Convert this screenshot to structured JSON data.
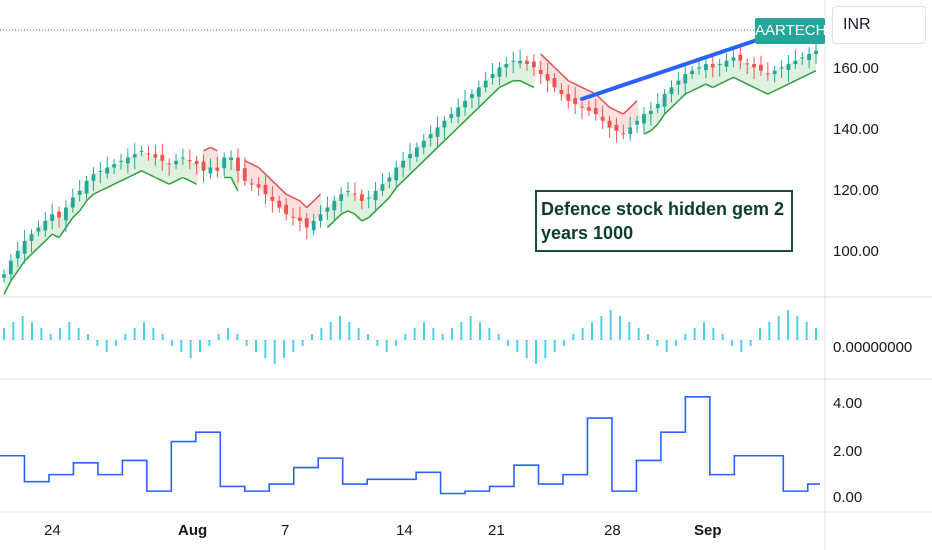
{
  "ticker": "AARTECH",
  "currency": "INR",
  "annotation": "Defence stock hidden gem 2 years 1000",
  "colors": {
    "up": "#26a69a",
    "down": "#ef5350",
    "supertrend_up": "#2e9e3e",
    "supertrend_down": "#e05050",
    "trendline": "#2962ff",
    "histogram": "#4dd0e1",
    "indicator_line": "#2962ff"
  },
  "chart_data": [
    {
      "type": "candlestick",
      "panel": "price",
      "y_ticks": [
        "160.00",
        "140.00",
        "120.00",
        "100.00"
      ],
      "ylim": [
        88,
        168
      ],
      "x_ticks": [
        "24",
        "Aug",
        "7",
        "14",
        "21",
        "28",
        "Sep"
      ],
      "close_series": [
        96,
        100,
        103,
        106,
        108,
        110,
        112,
        114,
        113,
        116,
        119,
        121,
        124,
        126,
        127,
        128,
        129,
        130,
        131,
        132,
        133,
        132,
        131,
        130,
        129,
        130,
        131,
        130,
        129,
        127,
        128,
        127,
        131,
        131,
        127,
        124,
        123,
        122,
        120,
        118,
        116,
        114,
        113,
        112,
        110,
        112,
        114,
        116,
        118,
        120,
        121,
        120,
        118,
        119,
        121,
        123,
        125,
        128,
        130,
        132,
        134,
        136,
        138,
        140,
        142,
        144,
        146,
        148,
        150,
        152,
        154,
        156,
        158,
        159,
        160,
        160,
        159,
        158,
        156,
        154,
        152,
        150,
        148,
        147,
        146,
        145,
        144,
        142,
        140,
        139,
        138,
        140,
        142,
        144,
        145,
        147,
        150,
        152,
        154,
        156,
        157,
        158,
        159,
        158,
        159,
        160,
        161,
        160,
        159,
        158,
        157,
        156,
        157,
        158,
        159,
        160,
        161,
        162,
        163
      ]
    },
    {
      "type": "bar",
      "panel": "oscillator",
      "y_ticks": [
        "0.00000000"
      ],
      "values": [
        2,
        3,
        4,
        3,
        2,
        1,
        2,
        3,
        2,
        1,
        -1,
        -2,
        -1,
        1,
        2,
        3,
        2,
        1,
        -1,
        -2,
        -3,
        -2,
        -1,
        1,
        2,
        1,
        -1,
        -2,
        -3,
        -4,
        -3,
        -2,
        -1,
        1,
        2,
        3,
        4,
        3,
        2,
        1,
        -1,
        -2,
        -1,
        1,
        2,
        3,
        2,
        1,
        2,
        3,
        4,
        3,
        2,
        1,
        -1,
        -2,
        -3,
        -4,
        -3,
        -2,
        -1,
        1,
        2,
        3,
        4,
        5,
        4,
        3,
        2,
        1,
        -1,
        -2,
        -1,
        1,
        2,
        3,
        2,
        1,
        -1,
        -2,
        -1,
        2,
        3,
        4,
        5,
        4,
        3,
        2
      ]
    },
    {
      "type": "line",
      "panel": "indicator",
      "y_ticks": [
        "4.00",
        "2.00",
        "0.00"
      ],
      "ylim": [
        -0.5,
        4.8
      ],
      "values": [
        1.8,
        1.8,
        0.7,
        0.7,
        1.0,
        1.0,
        1.5,
        1.5,
        1.0,
        1.0,
        1.6,
        1.6,
        0.3,
        0.3,
        2.4,
        2.4,
        2.8,
        2.8,
        0.5,
        0.5,
        0.3,
        0.3,
        0.6,
        0.6,
        1.3,
        1.3,
        1.7,
        1.7,
        0.6,
        0.6,
        0.8,
        0.8,
        0.8,
        0.8,
        1.1,
        1.1,
        0.2,
        0.2,
        0.3,
        0.3,
        0.5,
        0.5,
        1.4,
        1.4,
        0.6,
        0.6,
        1.0,
        1.0,
        3.4,
        3.4,
        0.3,
        0.3,
        1.6,
        1.6,
        2.8,
        2.8,
        4.3,
        4.3,
        1.0,
        1.0,
        1.8,
        1.8,
        1.8,
        1.8,
        0.3,
        0.3,
        0.6,
        0.6
      ]
    }
  ]
}
